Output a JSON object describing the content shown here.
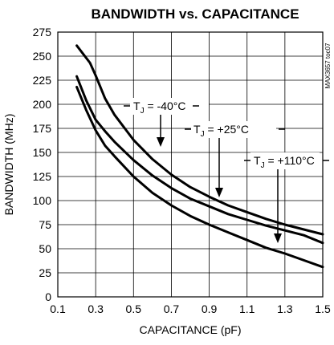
{
  "chart_data": {
    "type": "line",
    "title": "BANDWIDTH vs. CAPACITANCE",
    "xlabel": "CAPACITANCE (pF)",
    "ylabel": "BANDWIDTH (MHz)",
    "xlim": [
      0.1,
      1.5
    ],
    "ylim": [
      0,
      275
    ],
    "xticks": [
      "0.1",
      "0.3",
      "0.5",
      "0.7",
      "0.9",
      "1.1",
      "1.3",
      "1.5"
    ],
    "yticks": [
      "0",
      "25",
      "50",
      "75",
      "100",
      "125",
      "150",
      "175",
      "200",
      "225",
      "250",
      "275"
    ],
    "grid": true,
    "watermark": "MAX3657 toc07",
    "series": [
      {
        "name": "TJ = -40°C",
        "label_main": "T",
        "label_sub": "J",
        "label_rest": " = -40°C",
        "x": [
          0.2,
          0.27,
          0.3,
          0.35,
          0.4,
          0.5,
          0.6,
          0.7,
          0.8,
          0.9,
          1.0,
          1.1,
          1.2,
          1.3,
          1.4,
          1.5
        ],
        "y": [
          261,
          243,
          230,
          206,
          189,
          163,
          143,
          127,
          114,
          104,
          95,
          88,
          81,
          75,
          70,
          65
        ]
      },
      {
        "name": "TJ = +25°C",
        "label_main": "T",
        "label_sub": "J",
        "label_rest": " = +25°C",
        "x": [
          0.2,
          0.25,
          0.3,
          0.35,
          0.4,
          0.5,
          0.6,
          0.7,
          0.8,
          0.9,
          1.0,
          1.1,
          1.2,
          1.3,
          1.4,
          1.5
        ],
        "y": [
          229,
          204,
          184,
          172,
          161,
          142,
          126,
          113,
          102,
          94,
          86,
          80,
          74,
          69,
          64,
          56
        ]
      },
      {
        "name": "TJ = +110°C",
        "label_main": "T",
        "label_sub": "J",
        "label_rest": " = +110°C",
        "x": [
          0.2,
          0.25,
          0.3,
          0.35,
          0.4,
          0.5,
          0.6,
          0.7,
          0.8,
          0.9,
          1.0,
          1.1,
          1.2,
          1.3,
          1.4,
          1.5
        ],
        "y": [
          218,
          194,
          173,
          157,
          146,
          125,
          108,
          95,
          84,
          75,
          67,
          59,
          51,
          45,
          38,
          31
        ]
      }
    ]
  }
}
